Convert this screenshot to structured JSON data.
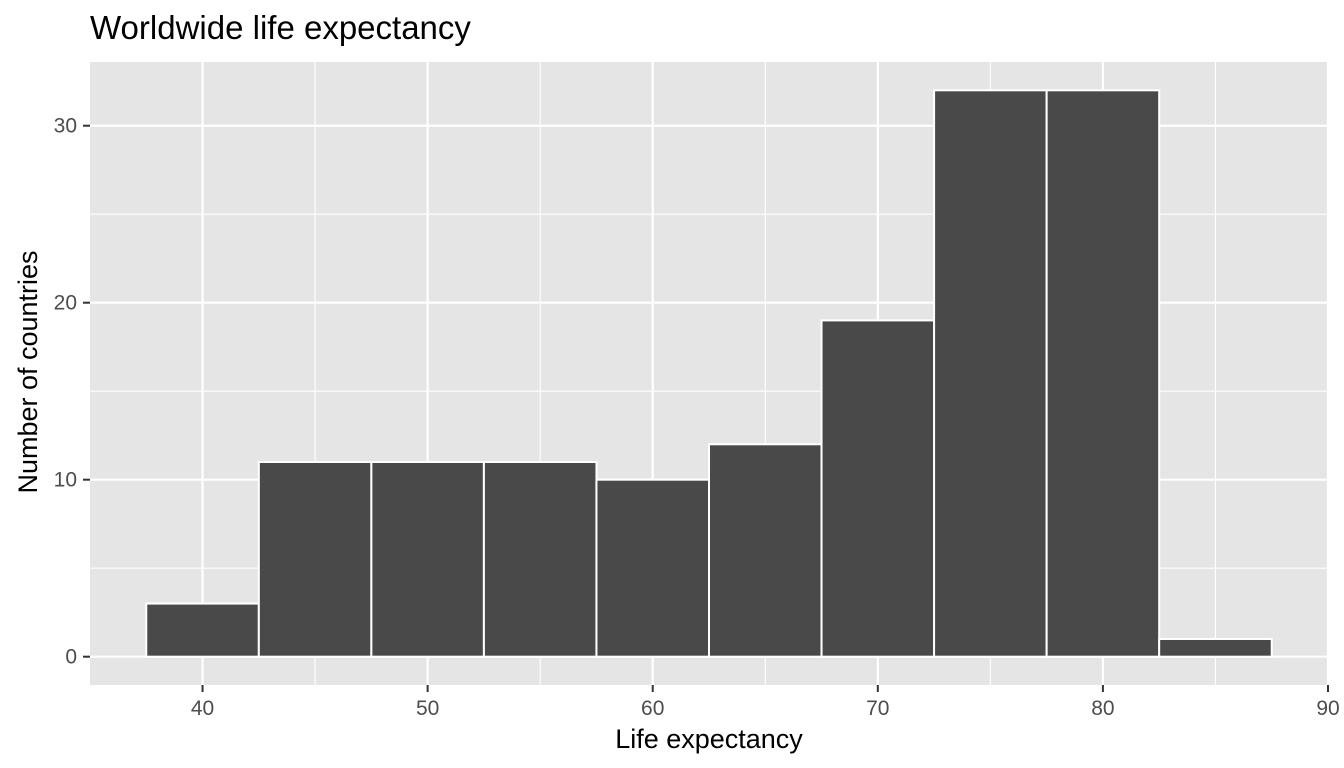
{
  "chart_data": {
    "type": "bar",
    "title": "Worldwide life expectancy",
    "xlabel": "Life expectancy",
    "ylabel": "Number of countries",
    "bin_width": 5,
    "bins": [
      {
        "x_start": 37.5,
        "x_end": 42.5,
        "count": 3
      },
      {
        "x_start": 42.5,
        "x_end": 47.5,
        "count": 11
      },
      {
        "x_start": 47.5,
        "x_end": 52.5,
        "count": 11
      },
      {
        "x_start": 52.5,
        "x_end": 57.5,
        "count": 11
      },
      {
        "x_start": 57.5,
        "x_end": 62.5,
        "count": 10
      },
      {
        "x_start": 62.5,
        "x_end": 67.5,
        "count": 12
      },
      {
        "x_start": 67.5,
        "x_end": 72.5,
        "count": 19
      },
      {
        "x_start": 72.5,
        "x_end": 77.5,
        "count": 32
      },
      {
        "x_start": 77.5,
        "x_end": 82.5,
        "count": 32
      },
      {
        "x_start": 82.5,
        "x_end": 87.5,
        "count": 1
      }
    ],
    "xlim": [
      35,
      90
    ],
    "ylim": [
      -1.6,
      33.6
    ],
    "x_ticks": [
      40,
      50,
      60,
      70,
      80,
      90
    ],
    "x_tick_labels": [
      "40",
      "50",
      "60",
      "70",
      "80",
      "90"
    ],
    "x_minor_ticks": [
      45,
      55,
      65,
      75,
      85
    ],
    "y_ticks": [
      0,
      10,
      20,
      30
    ],
    "y_tick_labels": [
      "0",
      "10",
      "20",
      "30"
    ],
    "y_minor_ticks": [
      5,
      15,
      25
    ],
    "grid": true,
    "legend": "none",
    "colors": {
      "panel_background": "#e5e5e5",
      "grid": "#ffffff",
      "bar_fill": "#494949",
      "bar_outline": "#ffffff",
      "tick_label": "#4d4d4d",
      "tick_mark": "#333333",
      "text": "#000000"
    }
  }
}
